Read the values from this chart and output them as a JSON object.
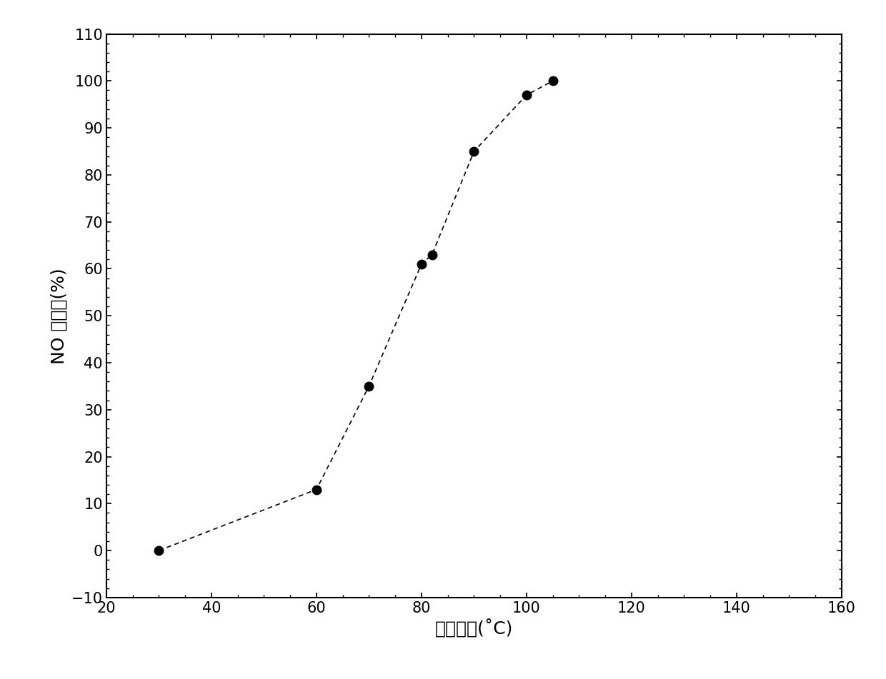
{
  "x": [
    30,
    60,
    70,
    80,
    82,
    90,
    100,
    105
  ],
  "y": [
    0,
    13,
    35,
    61,
    63,
    85,
    97,
    100
  ],
  "xlim": [
    20,
    160
  ],
  "ylim": [
    -10,
    110
  ],
  "xticks": [
    20,
    40,
    60,
    80,
    100,
    120,
    140,
    160
  ],
  "yticks": [
    -10,
    0,
    10,
    20,
    30,
    40,
    50,
    60,
    70,
    80,
    90,
    100,
    110
  ],
  "xlabel": "反应温度(˚C)",
  "ylabel": "NO 脉除率(%)",
  "line_color": "#000000",
  "marker_color": "#000000",
  "marker_size": 9,
  "line_width": 1.2,
  "background_color": "#ffffff",
  "tick_fontsize": 15,
  "label_fontsize": 18
}
